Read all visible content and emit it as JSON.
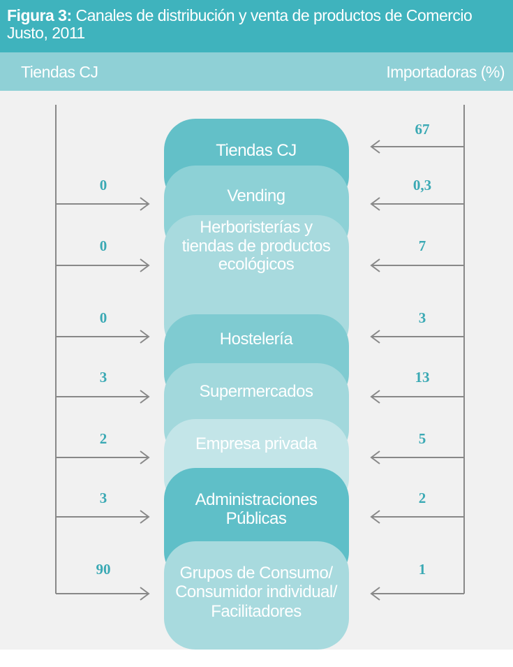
{
  "header": {
    "label": "Figura 3:",
    "title": "Canales de distribución y venta de productos de Comercio Justo, 2011"
  },
  "columns": {
    "left": "Tiendas CJ",
    "right": "Importadoras (%)"
  },
  "channels": [
    {
      "lines": [
        "Tiendas CJ"
      ],
      "right": "67"
    },
    {
      "lines": [
        "Vending"
      ],
      "left": "0",
      "right": "0,3"
    },
    {
      "lines": [
        "Herboristerías y",
        "tiendas de productos",
        "ecológicos"
      ],
      "left": "0",
      "right": "7"
    },
    {
      "lines": [
        "Hostelería"
      ],
      "left": "0",
      "right": "3"
    },
    {
      "lines": [
        "Supermercados"
      ],
      "left": "3",
      "right": "13"
    },
    {
      "lines": [
        "Empresa privada"
      ],
      "left": "2",
      "right": "5"
    },
    {
      "lines": [
        "Administraciones",
        "Públicas"
      ],
      "left": "3",
      "right": "2"
    },
    {
      "lines": [
        "Grupos de Consumo/",
        "Consumidor individual/",
        "Facilitadores"
      ],
      "left": "90",
      "right": "1"
    }
  ]
}
